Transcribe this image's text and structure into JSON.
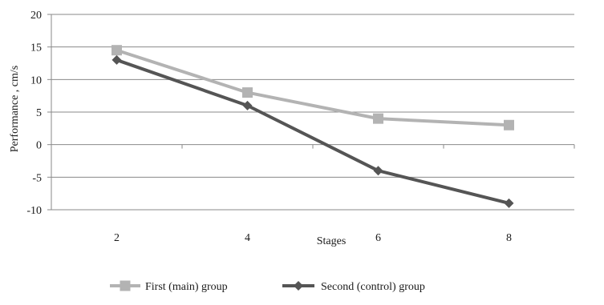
{
  "chart_data": {
    "type": "line",
    "title": "",
    "xlabel": "Stages",
    "ylabel": "Performance , cm/s",
    "categories": [
      "2",
      "4",
      "6",
      "8"
    ],
    "ylim": [
      -10,
      20
    ],
    "yticks": [
      20,
      15,
      10,
      5,
      0,
      -5,
      -10
    ],
    "grid": "horizontal",
    "legend_position": "bottom",
    "series": [
      {
        "name": "First (main) group",
        "values": [
          14.5,
          8,
          4,
          3
        ],
        "color": "#b3b3b3",
        "marker": "square"
      },
      {
        "name": "Second (control) group",
        "values": [
          13,
          6,
          -4,
          -9
        ],
        "color": "#555555",
        "marker": "diamond"
      }
    ]
  }
}
